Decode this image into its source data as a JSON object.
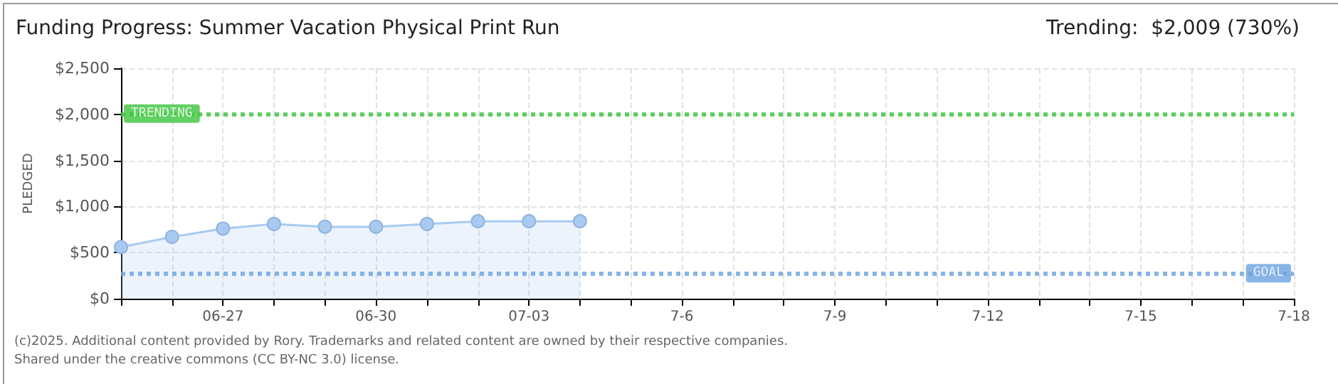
{
  "chart_data": {
    "type": "area",
    "title": "Funding Progress: Summer Vacation Physical Print Run",
    "subtitle": "Trending:  $2,009 (730%)",
    "ylabel": "PLEDGED",
    "annotations": [
      "(c)2025. Additional content provided by Rory. Trademarks and related content are owned by their respective companies.",
      "Shared under the creative commons (CC BY-NC 3.0) license."
    ],
    "x": [
      "--06-25",
      "--06-26",
      "--06-27",
      "--06-28",
      "--06-29",
      "--06-30",
      "--07-01",
      "--07-02",
      "--07-03",
      "--07-04"
    ],
    "series": [
      {
        "color": "#a9caf0",
        "values": [
          560,
          670,
          760,
          810,
          780,
          780,
          810,
          840,
          840,
          840
        ]
      }
    ],
    "xlim": [
      "--06-25",
      "--07-18"
    ],
    "xticks": [
      {
        "value": "--06-25",
        "label": null
      },
      {
        "value": "--06-26",
        "label": null
      },
      {
        "value": "--06-27",
        "label": "06-27"
      },
      {
        "value": "--06-28",
        "label": null
      },
      {
        "value": "--06-29",
        "label": null
      },
      {
        "value": "--06-30",
        "label": "06-30"
      },
      {
        "value": "--07-01",
        "label": null
      },
      {
        "value": "--07-02",
        "label": null
      },
      {
        "value": "--07-03",
        "label": "07-03"
      },
      {
        "value": "--07-04",
        "label": null
      },
      {
        "value": "--07-05",
        "label": null
      },
      {
        "value": "--07-06",
        "label": "7-6"
      },
      {
        "value": "--07-07",
        "label": null
      },
      {
        "value": "--07-08",
        "label": null
      },
      {
        "value": "--07-09",
        "label": "7-9"
      },
      {
        "value": "--07-10",
        "label": null
      },
      {
        "value": "--07-11",
        "label": null
      },
      {
        "value": "--07-12",
        "label": "7-12"
      },
      {
        "value": "--07-13",
        "label": null
      },
      {
        "value": "--07-14",
        "label": null
      },
      {
        "value": "--07-15",
        "label": "7-15"
      },
      {
        "value": "--07-16",
        "label": null
      },
      {
        "value": "--07-17",
        "label": null
      },
      {
        "value": "--07-18",
        "label": "7-18"
      }
    ],
    "ylim": [
      0,
      2500
    ],
    "yticks": [
      {
        "value": 0,
        "label": "$0"
      },
      {
        "value": 500,
        "label": "$500"
      },
      {
        "value": 1000,
        "label": "$1,000"
      },
      {
        "value": 1500,
        "label": "$1,500"
      },
      {
        "value": 2000,
        "label": "$2,000"
      },
      {
        "value": 2500,
        "label": "$2,500"
      }
    ],
    "ref_lines": [
      {
        "axis": "y",
        "value": 2009,
        "label": "TRENDING",
        "color": "#3cc43c",
        "line_style": "dotted"
      },
      {
        "axis": "y",
        "value": 275,
        "label": "GOAL",
        "color": "#6aa2e0",
        "line_style": "dotted"
      }
    ],
    "grid": true,
    "marker": "circle",
    "line_style": "solid"
  }
}
